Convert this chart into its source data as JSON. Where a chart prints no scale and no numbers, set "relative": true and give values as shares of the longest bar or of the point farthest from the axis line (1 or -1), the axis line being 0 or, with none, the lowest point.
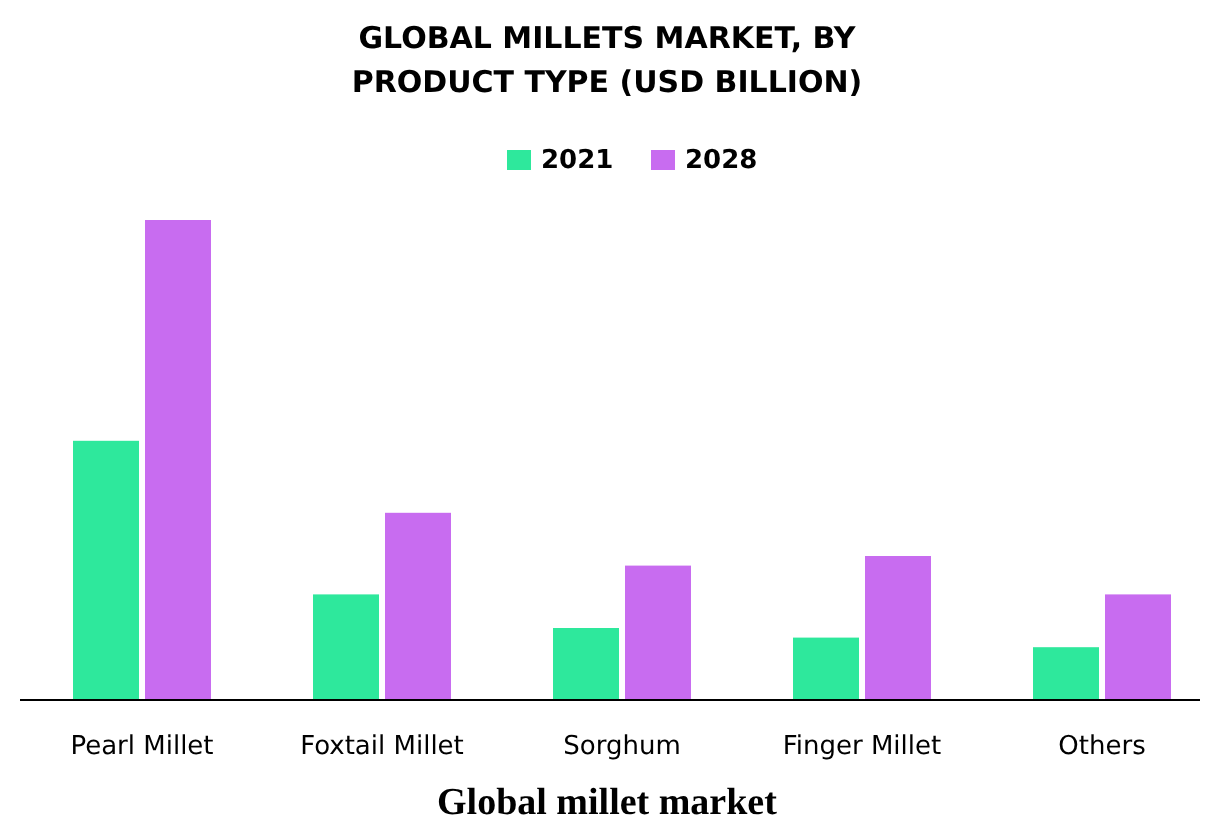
{
  "chart_data": {
    "type": "bar",
    "title": "GLOBAL MILLETS MARKET, BY PRODUCT TYPE (USD BILLION)",
    "categories": [
      "Pearl Millet",
      "Foxtail Millet",
      "Sorghum",
      "Finger Millet",
      "Others"
    ],
    "relative": true,
    "series": [
      {
        "name": "2021",
        "color": "#2ee89c",
        "values": [
          0.54,
          0.22,
          0.15,
          0.13,
          0.11
        ]
      },
      {
        "name": "2028",
        "color": "#c86cf0",
        "values": [
          1,
          0.39,
          0.28,
          0.3,
          0.22
        ]
      }
    ],
    "legend": "top",
    "grid": false,
    "annotations": [
      "Global millet market"
    ]
  }
}
